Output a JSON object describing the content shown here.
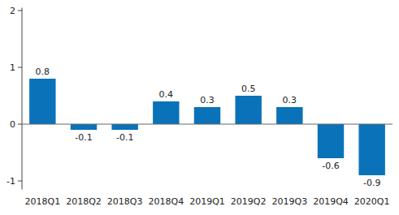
{
  "chart_data": {
    "type": "bar",
    "categories": [
      "2018Q1",
      "2018Q2",
      "2018Q3",
      "2018Q4",
      "2019Q1",
      "2019Q2",
      "2019Q3",
      "2019Q4",
      "2020Q1"
    ],
    "values": [
      0.8,
      -0.1,
      -0.1,
      0.4,
      0.3,
      0.5,
      0.3,
      -0.6,
      -0.9
    ],
    "color": "#0a72b8",
    "ylim": [
      -1.15,
      2.05
    ],
    "yticks": [
      -1,
      0,
      1,
      2
    ],
    "grid": false,
    "data_labels": true
  }
}
